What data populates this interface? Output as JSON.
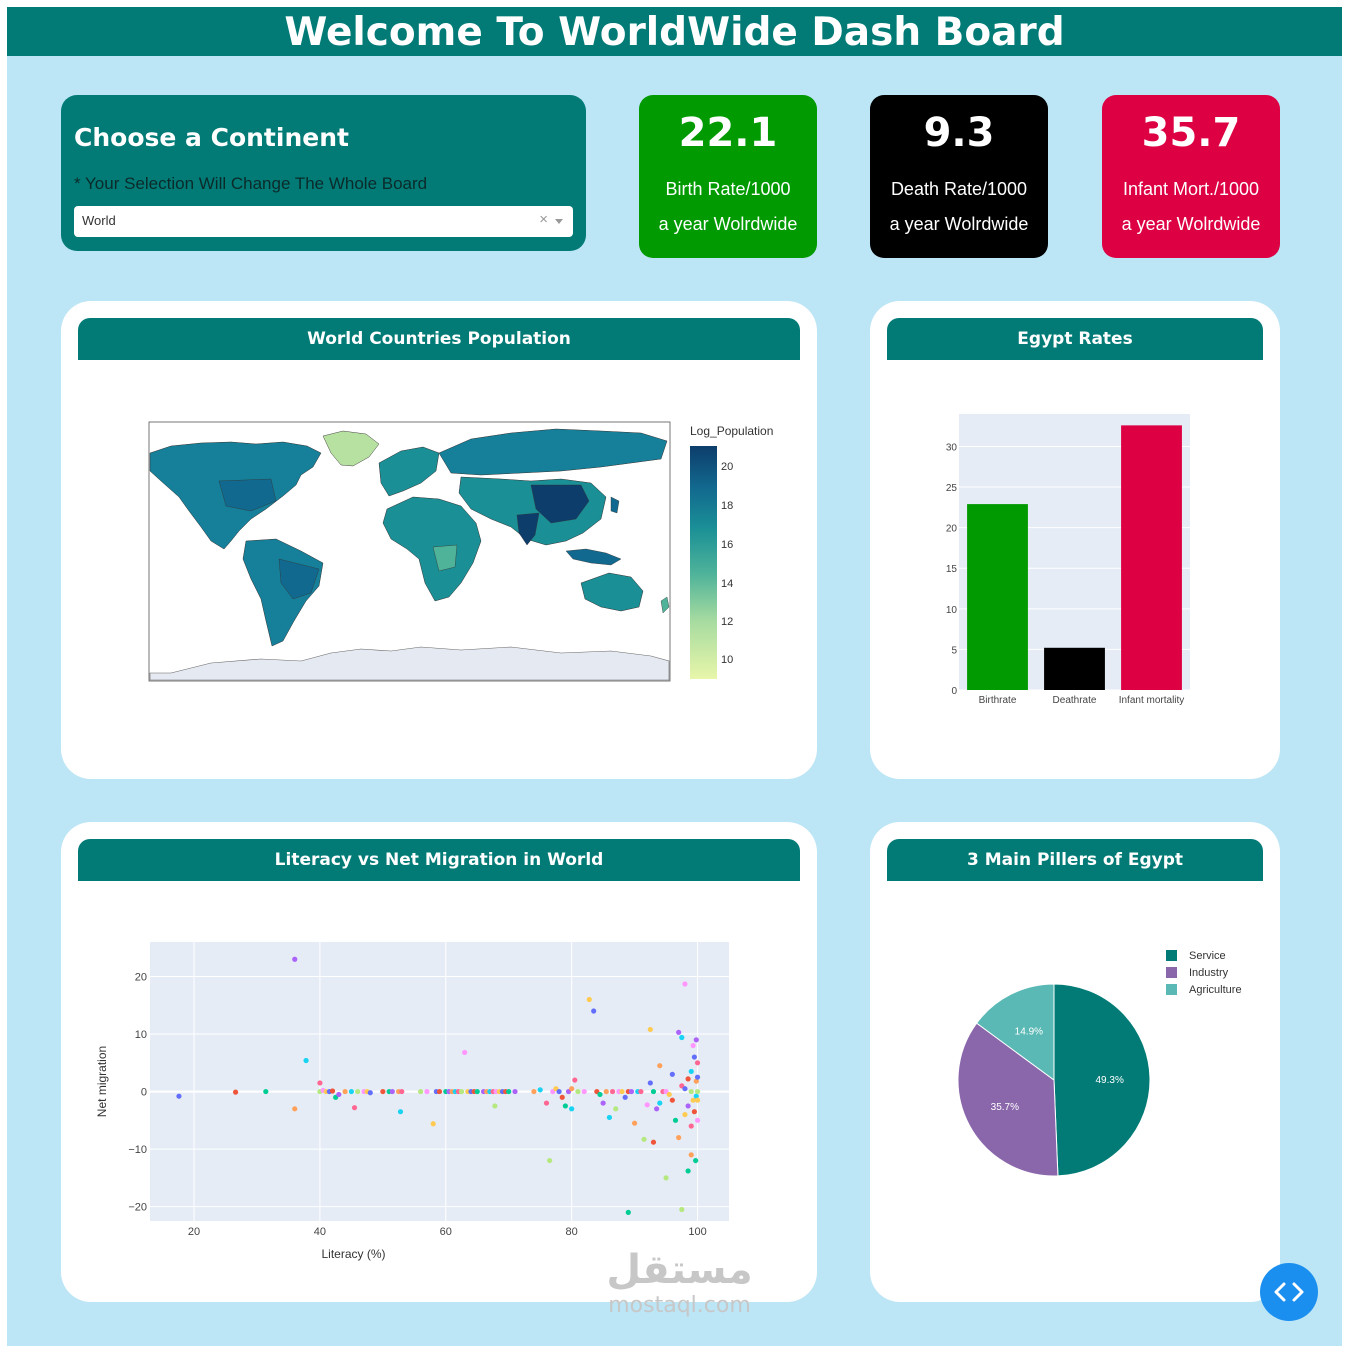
{
  "header": {
    "title": "Welcome To WorldWide Dash Board"
  },
  "chooser": {
    "title": "Choose a Continent",
    "note": "* Your Selection Will Change The Whole Board",
    "selected": "World",
    "clear_glyph": "×"
  },
  "kpis": [
    {
      "value": "22.1",
      "label1": "Birth Rate/1000",
      "label2": "a year Wolrdwide",
      "color": "#019a01"
    },
    {
      "value": "9.3",
      "label1": "Death Rate/1000",
      "label2": "a year Wolrdwide",
      "color": "#000000"
    },
    {
      "value": "35.7",
      "label1": "Infant Mort./1000",
      "label2": "a year Wolrdwide",
      "color": "#dd0144"
    }
  ],
  "panels": {
    "map": {
      "title": "World Countries Population"
    },
    "egypt": {
      "title": "Egypt Rates"
    },
    "scatter": {
      "title": "Literacy vs Net Migration in World"
    },
    "pie": {
      "title": "3 Main Pillers of Egypt"
    }
  },
  "map_chart": {
    "type": "choropleth",
    "colorbar_title": "Log_Population",
    "colorbar_ticks": [
      "20",
      "18",
      "16",
      "14",
      "12",
      "10"
    ],
    "colorscale": [
      "#e8f6a9",
      "#a6dba0",
      "#4fb39a",
      "#1a8f96",
      "#12698f",
      "#0d3d6b"
    ]
  },
  "chart_data": [
    {
      "type": "bar",
      "categories": [
        "Birthrate",
        "Deathrate",
        "Infant mortality"
      ],
      "values": [
        22.9,
        5.2,
        32.6
      ],
      "colors": [
        "#019a01",
        "#000000",
        "#dd0144"
      ],
      "ylim": [
        0,
        34
      ],
      "yticks": [
        0,
        5,
        10,
        15,
        20,
        25,
        30
      ]
    },
    {
      "type": "scatter",
      "xlabel": "Literacy (%)",
      "ylabel": "Net migration",
      "xlim": [
        13,
        105
      ],
      "ylim": [
        -22.5,
        26
      ],
      "xticks": [
        20,
        40,
        60,
        80,
        100
      ],
      "yticks": [
        20,
        10,
        0,
        -10,
        -20
      ],
      "ytick_labels": [
        "20",
        "10",
        "0",
        "−10",
        "−20"
      ],
      "points": [
        [
          17.6,
          -0.8
        ],
        [
          26.6,
          -0.1
        ],
        [
          31.4,
          0
        ],
        [
          36,
          23
        ],
        [
          36,
          -3
        ],
        [
          37.8,
          5.4
        ],
        [
          40,
          1.5
        ],
        [
          40,
          0
        ],
        [
          40.5,
          0.2
        ],
        [
          41,
          0
        ],
        [
          41.5,
          0
        ],
        [
          42,
          0.1
        ],
        [
          42.5,
          -1
        ],
        [
          43,
          -0.5
        ],
        [
          44,
          0
        ],
        [
          45,
          0
        ],
        [
          45.5,
          -2.8
        ],
        [
          46,
          0
        ],
        [
          47,
          0
        ],
        [
          47.5,
          0
        ],
        [
          48,
          -0.2
        ],
        [
          50,
          0
        ],
        [
          51,
          0
        ],
        [
          51.5,
          0
        ],
        [
          52.5,
          0
        ],
        [
          52.8,
          -3.5
        ],
        [
          53,
          0
        ],
        [
          56,
          0
        ],
        [
          57,
          0
        ],
        [
          58,
          -5.6
        ],
        [
          58.5,
          0
        ],
        [
          59,
          0
        ],
        [
          60,
          0
        ],
        [
          60.5,
          0
        ],
        [
          61,
          0
        ],
        [
          61.5,
          0
        ],
        [
          62,
          0
        ],
        [
          62.5,
          0
        ],
        [
          63,
          6.8
        ],
        [
          63.5,
          0
        ],
        [
          64,
          0
        ],
        [
          64.5,
          0
        ],
        [
          65,
          0
        ],
        [
          66,
          0
        ],
        [
          66.5,
          0
        ],
        [
          67,
          0
        ],
        [
          67.5,
          0
        ],
        [
          67.8,
          -2.5
        ],
        [
          68,
          0
        ],
        [
          68.5,
          0
        ],
        [
          69,
          0
        ],
        [
          69.5,
          0
        ],
        [
          70,
          0
        ],
        [
          71,
          0
        ],
        [
          74,
          0
        ],
        [
          75,
          0.3
        ],
        [
          76,
          -2
        ],
        [
          76.5,
          -12
        ],
        [
          77,
          0
        ],
        [
          77.5,
          0.5
        ],
        [
          78,
          0
        ],
        [
          78.5,
          -1
        ],
        [
          79,
          -2.5
        ],
        [
          79.5,
          0
        ],
        [
          80,
          0.5
        ],
        [
          80,
          -3
        ],
        [
          80.5,
          2
        ],
        [
          81,
          0
        ],
        [
          82,
          0
        ],
        [
          82.8,
          16
        ],
        [
          83.5,
          14
        ],
        [
          84,
          0
        ],
        [
          84.5,
          -0.5
        ],
        [
          85,
          -2
        ],
        [
          85.5,
          0
        ],
        [
          86,
          -4.5
        ],
        [
          86.5,
          0
        ],
        [
          87,
          -3
        ],
        [
          87.5,
          0
        ],
        [
          88,
          0
        ],
        [
          88.5,
          -1
        ],
        [
          89,
          0
        ],
        [
          89,
          -21
        ],
        [
          89.5,
          0
        ],
        [
          90,
          -5.5
        ],
        [
          90.5,
          0
        ],
        [
          91,
          0
        ],
        [
          91.5,
          -8.3
        ],
        [
          92,
          -2.3
        ],
        [
          92.5,
          10.8
        ],
        [
          92.5,
          1.5
        ],
        [
          93,
          -8.8
        ],
        [
          93,
          0
        ],
        [
          93.5,
          -3
        ],
        [
          94,
          4.5
        ],
        [
          94,
          -2
        ],
        [
          94.5,
          0
        ],
        [
          95,
          -15
        ],
        [
          95,
          0
        ],
        [
          95.5,
          -0.5
        ],
        [
          96,
          3
        ],
        [
          96,
          -1.5
        ],
        [
          96.5,
          -5
        ],
        [
          97,
          10.3
        ],
        [
          97,
          -8
        ],
        [
          97.5,
          9.4
        ],
        [
          97.5,
          1
        ],
        [
          97.5,
          -20.5
        ],
        [
          98,
          18.7
        ],
        [
          98,
          -4
        ],
        [
          98,
          0.5
        ],
        [
          98.5,
          2.2
        ],
        [
          98.5,
          -13.8
        ],
        [
          98.5,
          -2.5
        ],
        [
          99,
          -11
        ],
        [
          99,
          3.5
        ],
        [
          99,
          -6
        ],
        [
          99,
          0
        ],
        [
          99.3,
          8
        ],
        [
          99.3,
          -1.5
        ],
        [
          99.5,
          6
        ],
        [
          99.5,
          -3.5
        ],
        [
          99.7,
          -12
        ],
        [
          99.8,
          9
        ],
        [
          99.8,
          1.8
        ],
        [
          99.8,
          -0.8
        ],
        [
          100,
          5
        ],
        [
          100,
          0
        ],
        [
          100,
          -5
        ],
        [
          100,
          -1.5
        ],
        [
          100,
          2.5
        ]
      ]
    },
    {
      "type": "pie",
      "labels": [
        "Service",
        "Industry",
        "Agriculture"
      ],
      "values": [
        49.3,
        35.7,
        14.9
      ],
      "text": [
        "49.3%",
        "35.7%",
        "14.9%"
      ],
      "colors": [
        "#027b77",
        "#8a66aa",
        "#5ab9b5"
      ],
      "legend": "top-right"
    }
  ],
  "watermark": {
    "arabic": "مستقل",
    "latin": "mostaql.com"
  },
  "fab": {
    "icon": "code-icon",
    "color": "#1b8ff0"
  }
}
